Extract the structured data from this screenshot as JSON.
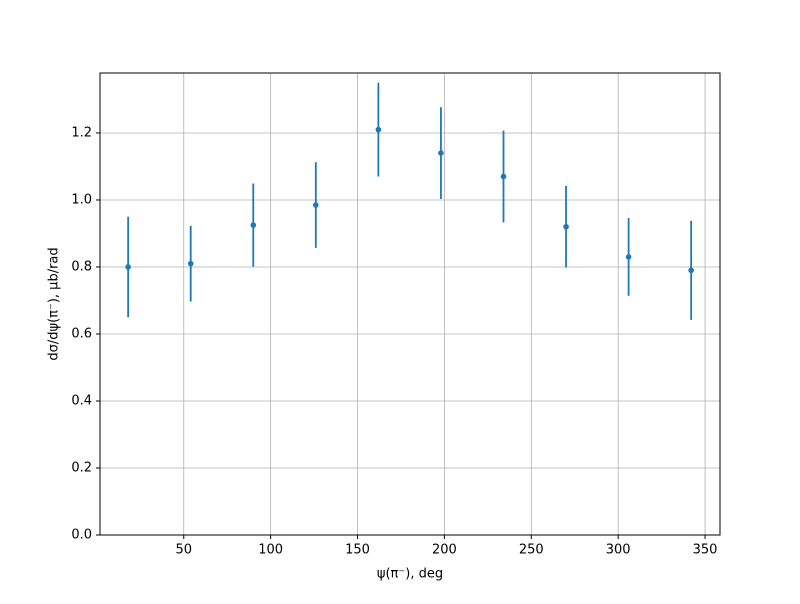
{
  "chart_data": {
    "type": "scatter",
    "x_label": "ψ(π⁻), deg",
    "y_label": "dσ/dψ(π⁻), μb/rad",
    "series": [
      {
        "color": "#1f77b4",
        "x": [
          18,
          54,
          90,
          126,
          162,
          198,
          234,
          270,
          306,
          342
        ],
        "values": [
          0.8,
          0.81,
          0.925,
          0.985,
          1.21,
          1.14,
          1.07,
          0.92,
          0.83,
          0.79
        ],
        "errors": [
          0.15,
          0.113,
          0.124,
          0.128,
          0.14,
          0.137,
          0.137,
          0.122,
          0.116,
          0.148
        ]
      }
    ],
    "xlim": [
      1.8,
      358.6
    ],
    "xticks": [
      50,
      100,
      150,
      200,
      250,
      300,
      350
    ],
    "ylim": [
      0,
      1.379
    ],
    "yticks": [
      {
        "value": 0,
        "label": "0.0"
      },
      0.2,
      0.4,
      0.6,
      0.8,
      {
        "value": 1,
        "label": "1.0"
      },
      1.2
    ],
    "grid": true
  }
}
